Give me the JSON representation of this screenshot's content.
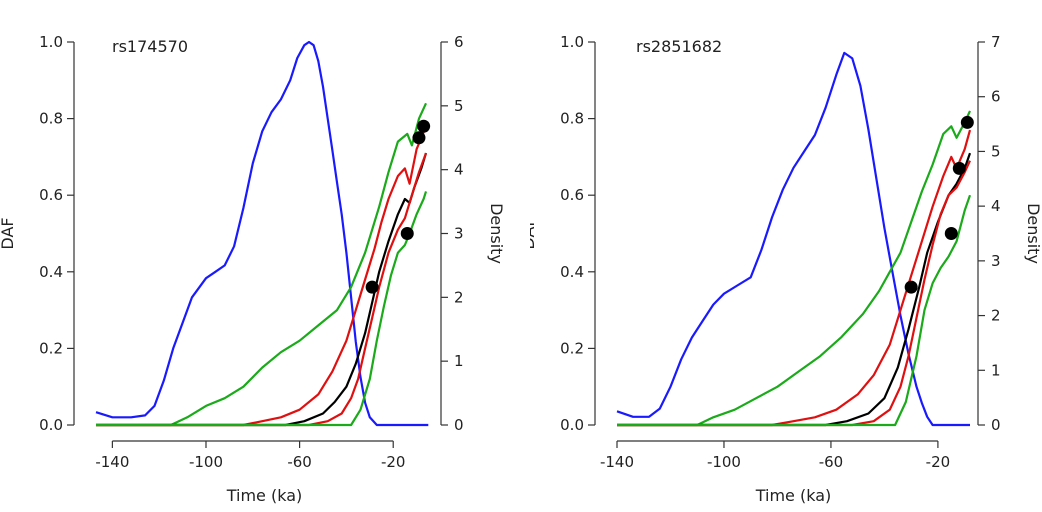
{
  "chart_data": [
    {
      "type": "line",
      "title": "rs174570",
      "xlabel": "Time (ka)",
      "ylabel": "DAF",
      "y2label": "Density",
      "xlim": [
        -147,
        -3
      ],
      "ylim": [
        0,
        1
      ],
      "y2lim": [
        0,
        6
      ],
      "xticks": [
        -140,
        -100,
        -60,
        -20
      ],
      "yticks": [
        0.0,
        0.2,
        0.4,
        0.6,
        0.8,
        1.0
      ],
      "ytick_labels": [
        "0.0",
        "0.2",
        "0.4",
        "0.6",
        "0.8",
        "1.0"
      ],
      "y2ticks": [
        0,
        1,
        2,
        3,
        4,
        5,
        6
      ],
      "series": [
        {
          "name": "density",
          "color": "#1a1aff",
          "axis": "right",
          "x": [
            -147,
            -140,
            -132,
            -126,
            -122,
            -118,
            -114,
            -110,
            -106,
            -100,
            -96,
            -92,
            -88,
            -84,
            -80,
            -76,
            -72,
            -68,
            -64,
            -61,
            -58,
            -56,
            -54,
            -52,
            -50,
            -48,
            -46,
            -44,
            -42,
            -40,
            -38,
            -36,
            -34,
            -32,
            -30,
            -27,
            -20,
            -5
          ],
          "values": [
            0.2,
            0.12,
            0.12,
            0.15,
            0.3,
            0.7,
            1.2,
            1.6,
            2.0,
            2.3,
            2.4,
            2.5,
            2.8,
            3.4,
            4.1,
            4.6,
            4.9,
            5.1,
            5.4,
            5.75,
            5.95,
            6.0,
            5.95,
            5.7,
            5.3,
            4.8,
            4.3,
            3.8,
            3.3,
            2.7,
            2.0,
            1.3,
            0.75,
            0.35,
            0.12,
            0.0,
            0.0,
            0.0
          ]
        },
        {
          "name": "upper-95",
          "color": "#1aaa1a",
          "axis": "left",
          "x": [
            -147,
            -115,
            -108,
            -100,
            -92,
            -84,
            -76,
            -68,
            -60,
            -52,
            -44,
            -38,
            -32,
            -26,
            -22,
            -18,
            -14,
            -12,
            -9,
            -6
          ],
          "values": [
            0,
            0,
            0.02,
            0.05,
            0.07,
            0.1,
            0.15,
            0.19,
            0.22,
            0.26,
            0.3,
            0.36,
            0.45,
            0.57,
            0.66,
            0.74,
            0.76,
            0.73,
            0.8,
            0.84
          ]
        },
        {
          "name": "upper-50",
          "color": "#e01010",
          "axis": "left",
          "x": [
            -147,
            -84,
            -76,
            -68,
            -60,
            -52,
            -46,
            -40,
            -36,
            -32,
            -28,
            -25,
            -22,
            -18,
            -15,
            -13,
            -10,
            -6
          ],
          "values": [
            0,
            0,
            0.01,
            0.02,
            0.04,
            0.08,
            0.14,
            0.22,
            0.3,
            0.38,
            0.46,
            0.53,
            0.59,
            0.65,
            0.67,
            0.63,
            0.72,
            0.78
          ]
        },
        {
          "name": "median",
          "color": "#000000",
          "axis": "left",
          "x": [
            -147,
            -66,
            -58,
            -50,
            -45,
            -40,
            -36,
            -32,
            -29,
            -26,
            -22,
            -18,
            -15,
            -13,
            -11,
            -8,
            -6
          ],
          "values": [
            0,
            0,
            0.01,
            0.03,
            0.06,
            0.1,
            0.16,
            0.24,
            0.32,
            0.4,
            0.48,
            0.55,
            0.59,
            0.58,
            0.62,
            0.67,
            0.71
          ]
        },
        {
          "name": "lower-50",
          "color": "#e01010",
          "axis": "left",
          "x": [
            -147,
            -56,
            -48,
            -42,
            -38,
            -35,
            -32,
            -29,
            -26,
            -22,
            -18,
            -15,
            -12,
            -9,
            -6
          ],
          "values": [
            0,
            0,
            0.01,
            0.03,
            0.07,
            0.12,
            0.2,
            0.28,
            0.36,
            0.45,
            0.51,
            0.54,
            0.6,
            0.66,
            0.71
          ]
        },
        {
          "name": "lower-95",
          "color": "#1aaa1a",
          "axis": "left",
          "x": [
            -147,
            -38,
            -34,
            -30,
            -27,
            -24,
            -21,
            -18,
            -15,
            -13,
            -10,
            -7,
            -6
          ],
          "values": [
            0,
            0,
            0.04,
            0.12,
            0.22,
            0.31,
            0.39,
            0.45,
            0.47,
            0.5,
            0.55,
            0.59,
            0.61
          ]
        }
      ],
      "points": [
        {
          "x": -29,
          "y": 0.36
        },
        {
          "x": -14,
          "y": 0.5
        },
        {
          "x": -9,
          "y": 0.75
        },
        {
          "x": -7,
          "y": 0.78
        }
      ]
    },
    {
      "type": "line",
      "title": "rs2851682",
      "xlabel": "Time (ka)",
      "ylabel": "DAF",
      "y2label": "Density",
      "xlim": [
        -140,
        -8
      ],
      "ylim": [
        0,
        1
      ],
      "y2lim": [
        0,
        7
      ],
      "xticks": [
        -140,
        -100,
        -60,
        -20
      ],
      "yticks": [
        0.0,
        0.2,
        0.4,
        0.6,
        0.8,
        1.0
      ],
      "ytick_labels": [
        "0.0",
        "0.2",
        "0.4",
        "0.6",
        "0.8",
        "1.0"
      ],
      "y2ticks": [
        0,
        1,
        2,
        3,
        4,
        5,
        6,
        7
      ],
      "series": [
        {
          "name": "density",
          "color": "#1a1aff",
          "axis": "right",
          "x": [
            -140,
            -134,
            -128,
            -124,
            -120,
            -116,
            -112,
            -108,
            -104,
            -100,
            -95,
            -90,
            -86,
            -82,
            -78,
            -74,
            -70,
            -66,
            -62,
            -58,
            -55,
            -52,
            -49,
            -46,
            -43,
            -40,
            -37,
            -34,
            -31,
            -28,
            -26,
            -24,
            -22,
            -8
          ],
          "values": [
            0.25,
            0.15,
            0.15,
            0.3,
            0.7,
            1.2,
            1.6,
            1.9,
            2.2,
            2.4,
            2.55,
            2.7,
            3.2,
            3.8,
            4.3,
            4.7,
            5.0,
            5.3,
            5.8,
            6.4,
            6.8,
            6.7,
            6.2,
            5.4,
            4.5,
            3.6,
            2.8,
            2.0,
            1.3,
            0.7,
            0.4,
            0.15,
            0.0,
            0.0
          ]
        },
        {
          "name": "upper-95",
          "color": "#1aaa1a",
          "axis": "left",
          "x": [
            -140,
            -110,
            -104,
            -96,
            -88,
            -80,
            -72,
            -64,
            -56,
            -48,
            -42,
            -38,
            -34,
            -30,
            -26,
            -22,
            -18,
            -15,
            -13,
            -10,
            -8
          ],
          "values": [
            0,
            0,
            0.02,
            0.04,
            0.07,
            0.1,
            0.14,
            0.18,
            0.23,
            0.29,
            0.35,
            0.4,
            0.45,
            0.53,
            0.61,
            0.68,
            0.76,
            0.78,
            0.75,
            0.79,
            0.82
          ]
        },
        {
          "name": "upper-50",
          "color": "#e01010",
          "axis": "left",
          "x": [
            -140,
            -82,
            -74,
            -66,
            -58,
            -50,
            -44,
            -38,
            -34,
            -30,
            -26,
            -22,
            -18,
            -15,
            -13,
            -10,
            -8
          ],
          "values": [
            0,
            0,
            0.01,
            0.02,
            0.04,
            0.08,
            0.13,
            0.21,
            0.3,
            0.39,
            0.48,
            0.57,
            0.65,
            0.7,
            0.67,
            0.72,
            0.77
          ]
        },
        {
          "name": "median",
          "color": "#000000",
          "axis": "left",
          "x": [
            -140,
            -62,
            -54,
            -46,
            -40,
            -35,
            -31,
            -27,
            -24,
            -20,
            -16,
            -13,
            -10,
            -8
          ],
          "values": [
            0,
            0,
            0.01,
            0.03,
            0.07,
            0.15,
            0.25,
            0.36,
            0.45,
            0.53,
            0.6,
            0.63,
            0.67,
            0.71
          ]
        },
        {
          "name": "lower-50",
          "color": "#e01010",
          "axis": "left",
          "x": [
            -140,
            -52,
            -44,
            -38,
            -34,
            -31,
            -28,
            -25,
            -22,
            -19,
            -16,
            -13,
            -10,
            -8
          ],
          "values": [
            0,
            0,
            0.01,
            0.04,
            0.1,
            0.18,
            0.28,
            0.38,
            0.47,
            0.55,
            0.6,
            0.62,
            0.66,
            0.69
          ]
        },
        {
          "name": "lower-95",
          "color": "#1aaa1a",
          "axis": "left",
          "x": [
            -140,
            -36,
            -32,
            -28,
            -25,
            -22,
            -19,
            -16,
            -13,
            -10,
            -8
          ],
          "values": [
            0,
            0,
            0.06,
            0.18,
            0.3,
            0.37,
            0.41,
            0.44,
            0.48,
            0.56,
            0.6
          ]
        }
      ],
      "points": [
        {
          "x": -30,
          "y": 0.36
        },
        {
          "x": -15,
          "y": 0.5
        },
        {
          "x": -12,
          "y": 0.67
        },
        {
          "x": -9,
          "y": 0.79
        }
      ]
    }
  ]
}
